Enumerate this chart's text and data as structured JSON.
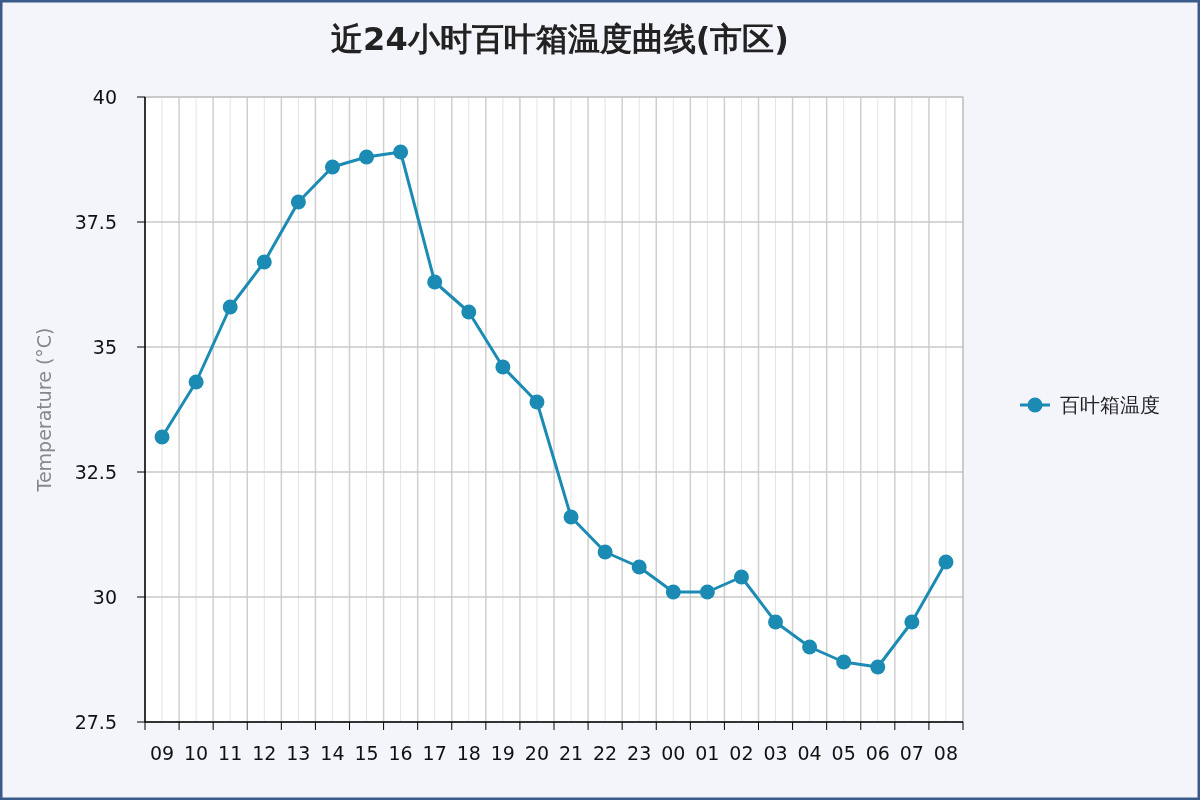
{
  "chart_data": {
    "type": "line",
    "title": "近24小时百叶箱温度曲线(市区)",
    "ylabel": "Temperature (°C)",
    "categories": [
      "09",
      "10",
      "11",
      "12",
      "13",
      "14",
      "15",
      "16",
      "17",
      "18",
      "19",
      "20",
      "21",
      "22",
      "23",
      "00",
      "01",
      "02",
      "03",
      "04",
      "05",
      "06",
      "07",
      "08"
    ],
    "series": [
      {
        "name": "百叶箱温度",
        "color": "#1b8bb4",
        "values": [
          33.2,
          34.3,
          35.8,
          36.7,
          37.9,
          38.6,
          38.8,
          38.9,
          36.3,
          35.7,
          34.6,
          33.9,
          31.6,
          30.9,
          30.6,
          30.1,
          30.1,
          30.4,
          29.5,
          29.0,
          28.7,
          28.6,
          29.5,
          30.7
        ]
      }
    ],
    "ylim": [
      27.5,
      40
    ],
    "yticks": [
      27.5,
      30,
      32.5,
      35,
      37.5,
      40
    ],
    "grid": true,
    "legend": "right",
    "marker": "circle",
    "line_style": "solid"
  }
}
